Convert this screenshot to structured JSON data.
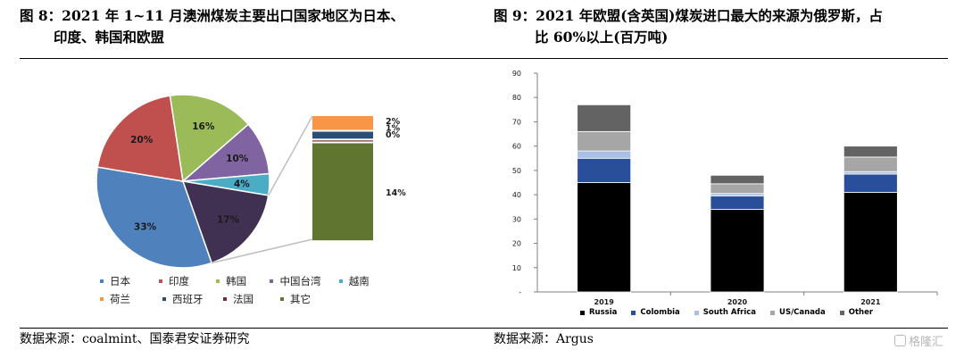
{
  "left": {
    "title_line1": "图 8：2021 年 1~11 月澳洲煤炭主要出口国家地区为日本、",
    "title_line2": "印度、韩国和欧盟",
    "source": "数据来源：coalmint、国泰君安证券研究"
  },
  "right": {
    "title_line1": "图 9：2021 年欧盟(含英国)煤炭进口最大的来源为俄罗斯，占",
    "title_line2": "比 60%以上(百万吨)",
    "source": "数据来源：Argus"
  },
  "watermark": "格隆汇",
  "chart_data": [
    {
      "type": "pie",
      "title": "",
      "slices": [
        {
          "name": "日本",
          "value": 33,
          "label": "33%",
          "color": "#4f81bd"
        },
        {
          "name": "印度",
          "value": 20,
          "label": "20%",
          "color": "#c0504d"
        },
        {
          "name": "韩国",
          "value": 16,
          "label": "16%",
          "color": "#9bbb59"
        },
        {
          "name": "中国台湾",
          "value": 10,
          "label": "10%",
          "color": "#8064a2"
        },
        {
          "name": "越南",
          "value": 4,
          "label": "4%",
          "color": "#4bacc6"
        },
        {
          "name": "其它",
          "value": 17,
          "label": "17%",
          "color": "#403152"
        }
      ],
      "breakout": [
        {
          "name": "荷兰",
          "value": 2,
          "label": "2%",
          "color": "#f79646"
        },
        {
          "name": "西班牙",
          "value": 1,
          "label": "1%",
          "color": "#2c4d75"
        },
        {
          "name": "法国",
          "value": 0,
          "label": "0%",
          "color": "#772c2a"
        },
        {
          "name": "其它",
          "value": 14,
          "label": "14%",
          "color": "#5f7530"
        }
      ],
      "legend": [
        [
          "日本",
          "印度",
          "韩国",
          "中国台湾",
          "越南"
        ],
        [
          "荷兰",
          "西班牙",
          "法国",
          "其它"
        ]
      ],
      "legend_colors": [
        [
          "#4f81bd",
          "#c0504d",
          "#9bbb59",
          "#8064a2",
          "#4bacc6"
        ],
        [
          "#f79646",
          "#2c4d75",
          "#772c2a",
          "#5f7530"
        ]
      ]
    },
    {
      "type": "bar",
      "stacked": true,
      "title": "",
      "categories": [
        "2019",
        "2020",
        "2021"
      ],
      "series": [
        {
          "name": "Russia",
          "values": [
            45,
            34,
            41
          ],
          "color": "#000000"
        },
        {
          "name": "Colombia",
          "values": [
            10,
            5.5,
            7.5
          ],
          "color": "#2a4f9a"
        },
        {
          "name": "South Africa",
          "values": [
            3,
            1,
            1
          ],
          "color": "#a9bfe3"
        },
        {
          "name": "US/Canada",
          "values": [
            8,
            4,
            6
          ],
          "color": "#a6a6a6"
        },
        {
          "name": "Other",
          "values": [
            11,
            3.5,
            4.5
          ],
          "color": "#636363"
        }
      ],
      "ylim": [
        0,
        90
      ],
      "yticks": [
        0,
        10,
        20,
        30,
        40,
        50,
        60,
        70,
        80,
        90
      ],
      "ytick_labels": [
        "-",
        "10",
        "20",
        "30",
        "40",
        "50",
        "60",
        "70",
        "80",
        "90"
      ],
      "legend_position": "bottom"
    }
  ]
}
